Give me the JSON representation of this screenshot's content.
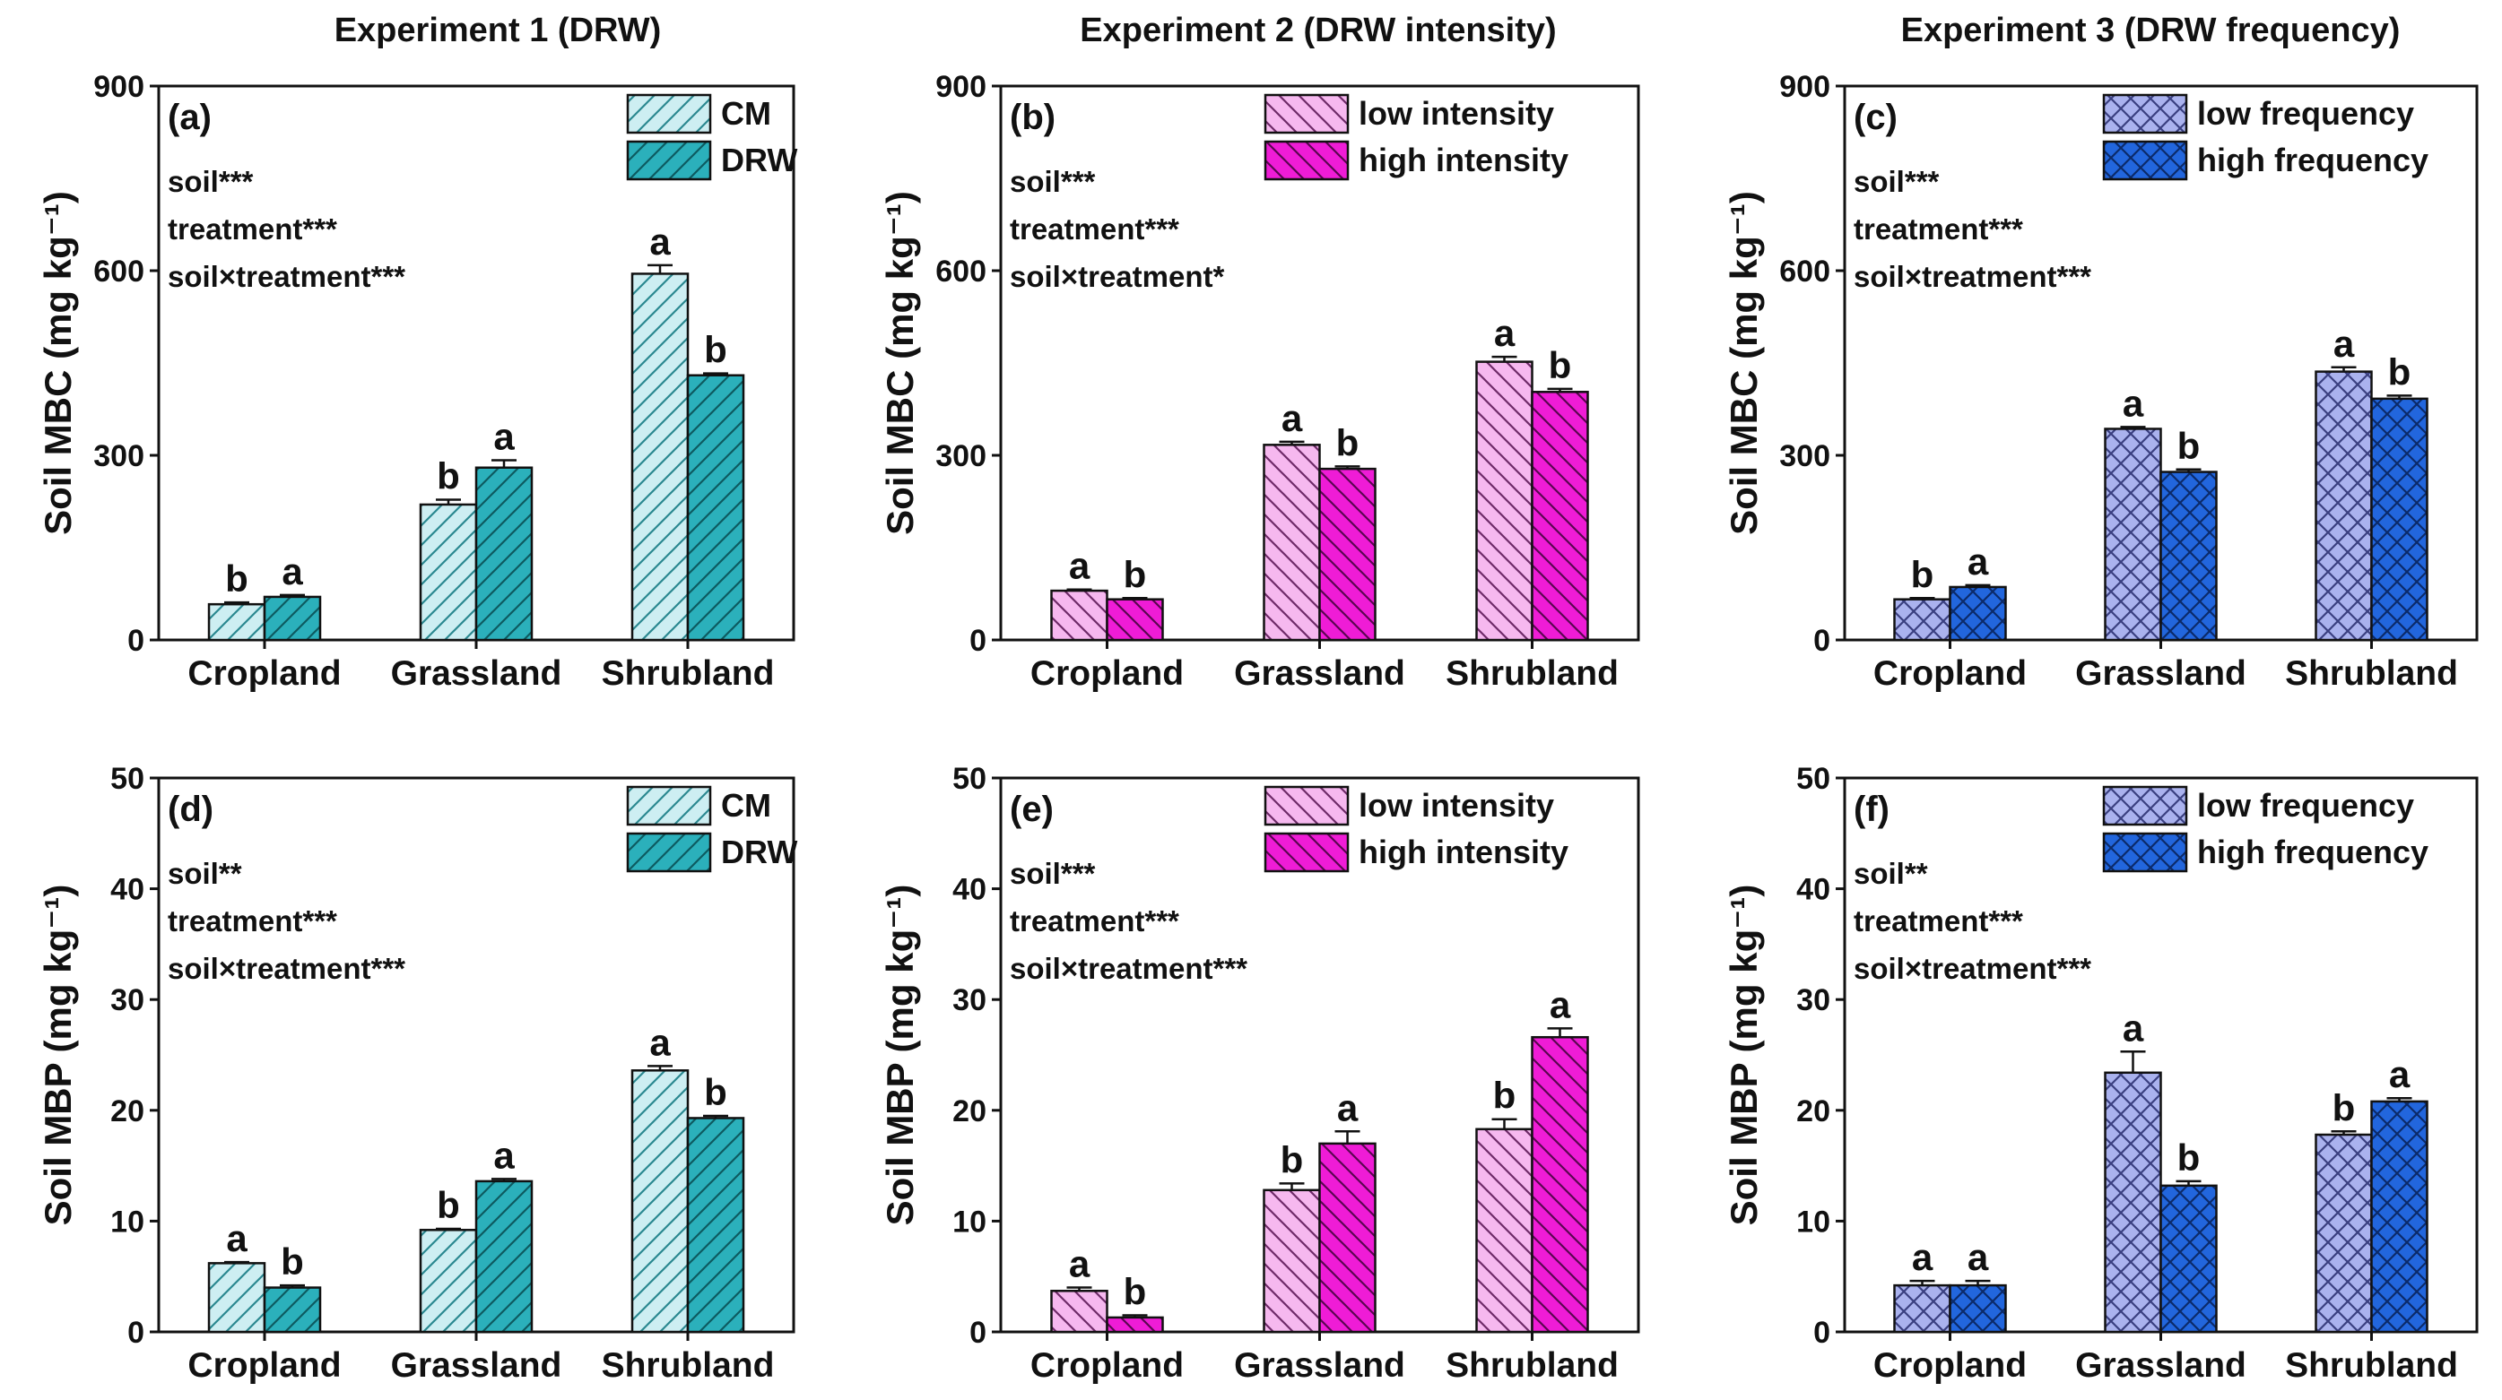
{
  "column_titles": [
    "Experiment 1 (DRW)",
    "Experiment 2 (DRW intensity)",
    "Experiment 3 (DRW frequency)"
  ],
  "colors": {
    "cm_fill": "#cdeef2",
    "drw_fill": "#2bb0bb",
    "cm_hatch": "#2a8890",
    "drw_hatch": "#0d5a60",
    "low_int_fill": "#f6b8ef",
    "high_int_fill": "#ef1cd6",
    "low_int_hatch": "#6e2a68",
    "high_int_hatch": "#5a0650",
    "low_freq_fill": "#aab2ee",
    "high_freq_fill": "#2266dd",
    "low_freq_hatch": "#3a3f80",
    "high_freq_hatch": "#0b2a6a",
    "axis": "#111111"
  },
  "chart_data": [
    {
      "id": "a",
      "type": "bar",
      "panel_label": "(a)",
      "title": "Experiment 1 (DRW)",
      "xlabel": "",
      "ylabel": "Soil MBC (mg kg⁻¹)",
      "ylim": [
        0,
        900
      ],
      "yticks": [
        0,
        300,
        600,
        900
      ],
      "categories": [
        "Cropland",
        "Grassland",
        "Shrubland"
      ],
      "series": [
        {
          "name": "CM",
          "values": [
            58,
            220,
            595
          ],
          "errors": [
            3,
            8,
            14
          ],
          "letters": [
            "b",
            "b",
            "a"
          ],
          "fill": "#cdeef2",
          "hatch": "diag",
          "hatch_color": "#2a8890"
        },
        {
          "name": "DRW",
          "values": [
            70,
            280,
            430
          ],
          "errors": [
            3,
            12,
            3
          ],
          "letters": [
            "a",
            "a",
            "b"
          ],
          "fill": "#2bb0bb",
          "hatch": "diag",
          "hatch_color": "#0d5a60"
        }
      ],
      "stats": [
        "soil***",
        "treatment***",
        "soil×treatment***"
      ],
      "legend": [
        "CM",
        "DRW"
      ]
    },
    {
      "id": "b",
      "type": "bar",
      "panel_label": "(b)",
      "title": "Experiment 2 (DRW intensity)",
      "xlabel": "",
      "ylabel": "Soil MBC (mg kg⁻¹)",
      "ylim": [
        0,
        900
      ],
      "yticks": [
        0,
        300,
        600,
        900
      ],
      "categories": [
        "Cropland",
        "Grassland",
        "Shrubland"
      ],
      "series": [
        {
          "name": "low intensity",
          "values": [
            80,
            317,
            452
          ],
          "errors": [
            2,
            5,
            8
          ],
          "letters": [
            "a",
            "a",
            "a"
          ],
          "fill": "#f6b8ef",
          "hatch": "back",
          "hatch_color": "#6e2a68"
        },
        {
          "name": "high intensity",
          "values": [
            66,
            278,
            403
          ],
          "errors": [
            2,
            4,
            5
          ],
          "letters": [
            "b",
            "b",
            "b"
          ],
          "fill": "#ef1cd6",
          "hatch": "back",
          "hatch_color": "#5a0650"
        }
      ],
      "stats": [
        "soil***",
        "treatment***",
        "soil×treatment*"
      ],
      "legend": [
        "low intensity",
        "high intensity"
      ]
    },
    {
      "id": "c",
      "type": "bar",
      "panel_label": "(c)",
      "title": "Experiment 3 (DRW frequency)",
      "xlabel": "",
      "ylabel": "Soil MBC (mg kg⁻¹)",
      "ylim": [
        0,
        900
      ],
      "yticks": [
        0,
        300,
        600,
        900
      ],
      "categories": [
        "Cropland",
        "Grassland",
        "Shrubland"
      ],
      "series": [
        {
          "name": "low frequency",
          "values": [
            66,
            343,
            436
          ],
          "errors": [
            2,
            3,
            7
          ],
          "letters": [
            "b",
            "a",
            "a"
          ],
          "fill": "#aab2ee",
          "hatch": "cross",
          "hatch_color": "#3a3f80"
        },
        {
          "name": "high frequency",
          "values": [
            86,
            273,
            392
          ],
          "errors": [
            3,
            4,
            5
          ],
          "letters": [
            "a",
            "b",
            "b"
          ],
          "fill": "#2266dd",
          "hatch": "cross",
          "hatch_color": "#0b2a6a"
        }
      ],
      "stats": [
        "soil***",
        "treatment***",
        "soil×treatment***"
      ],
      "legend": [
        "low frequency",
        "high frequency"
      ]
    },
    {
      "id": "d",
      "type": "bar",
      "panel_label": "(d)",
      "title": "",
      "xlabel": "",
      "ylabel": "Soil MBP (mg kg⁻¹)",
      "ylim": [
        0,
        50
      ],
      "yticks": [
        0,
        10,
        20,
        30,
        40,
        50
      ],
      "categories": [
        "Cropland",
        "Grassland",
        "Shrubland"
      ],
      "series": [
        {
          "name": "CM",
          "values": [
            6.2,
            9.2,
            23.6
          ],
          "errors": [
            0.1,
            0.1,
            0.4
          ],
          "letters": [
            "a",
            "b",
            "a"
          ],
          "fill": "#cdeef2",
          "hatch": "diag",
          "hatch_color": "#2a8890"
        },
        {
          "name": "DRW",
          "values": [
            4.0,
            13.6,
            19.3
          ],
          "errors": [
            0.2,
            0.2,
            0.2
          ],
          "letters": [
            "b",
            "a",
            "b"
          ],
          "fill": "#2bb0bb",
          "hatch": "diag",
          "hatch_color": "#0d5a60"
        }
      ],
      "stats": [
        "soil**",
        "treatment***",
        "soil×treatment***"
      ],
      "legend": [
        "CM",
        "DRW"
      ]
    },
    {
      "id": "e",
      "type": "bar",
      "panel_label": "(e)",
      "title": "",
      "xlabel": "",
      "ylabel": "Soil MBP (mg kg⁻¹)",
      "ylim": [
        0,
        50
      ],
      "yticks": [
        0,
        10,
        20,
        30,
        40,
        50
      ],
      "categories": [
        "Cropland",
        "Grassland",
        "Shrubland"
      ],
      "series": [
        {
          "name": "low intensity",
          "values": [
            3.7,
            12.8,
            18.3
          ],
          "errors": [
            0.3,
            0.6,
            0.9
          ],
          "letters": [
            "a",
            "b",
            "b"
          ],
          "fill": "#f6b8ef",
          "hatch": "back",
          "hatch_color": "#6e2a68"
        },
        {
          "name": "high intensity",
          "values": [
            1.3,
            17.0,
            26.6
          ],
          "errors": [
            0.2,
            1.1,
            0.8
          ],
          "letters": [
            "b",
            "a",
            "a"
          ],
          "fill": "#ef1cd6",
          "hatch": "back",
          "hatch_color": "#5a0650"
        }
      ],
      "stats": [
        "soil***",
        "treatment***",
        "soil×treatment***"
      ],
      "legend": [
        "low intensity",
        "high intensity"
      ]
    },
    {
      "id": "f",
      "type": "bar",
      "panel_label": "(f)",
      "title": "",
      "xlabel": "",
      "ylabel": "Soil MBP (mg kg⁻¹)",
      "ylim": [
        0,
        50
      ],
      "yticks": [
        0,
        10,
        20,
        30,
        40,
        50
      ],
      "categories": [
        "Cropland",
        "Grassland",
        "Shrubland"
      ],
      "series": [
        {
          "name": "low frequency",
          "values": [
            4.2,
            23.4,
            17.8
          ],
          "errors": [
            0.4,
            1.9,
            0.3
          ],
          "letters": [
            "a",
            "a",
            "b"
          ],
          "fill": "#aab2ee",
          "hatch": "cross",
          "hatch_color": "#3a3f80"
        },
        {
          "name": "high frequency",
          "values": [
            4.2,
            13.2,
            20.8
          ],
          "errors": [
            0.4,
            0.4,
            0.3
          ],
          "letters": [
            "a",
            "b",
            "a"
          ],
          "fill": "#2266dd",
          "hatch": "cross",
          "hatch_color": "#0b2a6a"
        }
      ],
      "stats": [
        "soil**",
        "treatment***",
        "soil×treatment***"
      ],
      "legend": [
        "low frequency",
        "high frequency"
      ]
    }
  ]
}
